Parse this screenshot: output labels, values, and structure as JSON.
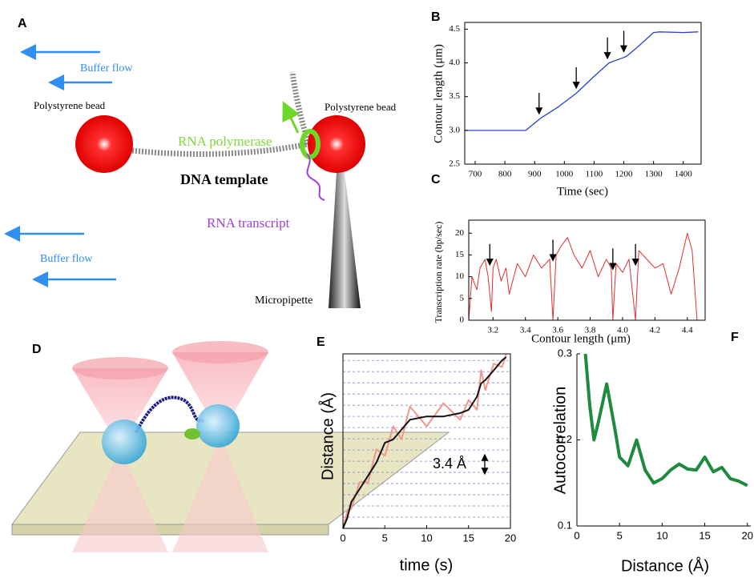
{
  "diagram_a": {
    "label": "A",
    "buffer_flow_top": "Buffer flow",
    "bead_left": "Polystyrene bead",
    "bead_right": "Polystyrene bead",
    "rna_polymerase": "RNA polymerase",
    "dna_template": "DNA template",
    "rna_transcript": "RNA transcript",
    "buffer_flow_bottom": "Buffer flow",
    "micropipette": "Micropipette"
  },
  "diagram_d": {
    "label": "D"
  },
  "chart_data": [
    {
      "type": "line",
      "panel_label": "B",
      "xlabel": "Time (sec)",
      "ylabel": "Contour length (μm)",
      "box": true,
      "xlim": [
        665,
        1460
      ],
      "ylim": [
        2.5,
        4.6
      ],
      "xticks": [
        700,
        800,
        900,
        1000,
        1100,
        1200,
        1300,
        1400
      ],
      "yticks": [
        2.5,
        {
          "value": 3,
          "label": "3.0"
        },
        3.5,
        {
          "value": 4,
          "label": "4.0"
        },
        4.5
      ],
      "x": [
        665,
        700,
        800,
        870,
        920,
        980,
        1040,
        1100,
        1150,
        1200,
        1210,
        1250,
        1300,
        1320,
        1400,
        1450
      ],
      "series": [
        {
          "color": "#2a3fd6",
          "values": [
            3.0,
            3.0,
            3.0,
            3.0,
            3.18,
            3.35,
            3.55,
            3.8,
            4.0,
            4.08,
            4.1,
            4.25,
            4.45,
            4.46,
            4.45,
            4.46
          ]
        }
      ],
      "arrows": [
        {
          "x": 915,
          "y": 3.2
        },
        {
          "x": 1040,
          "y": 3.58
        },
        {
          "x": 1145,
          "y": 4.02
        },
        {
          "x": 1200,
          "y": 4.12
        }
      ]
    },
    {
      "type": "line",
      "panel_label": "C",
      "xlabel": "Contour length (μm)",
      "ylabel": "Transcription rate (bp/sec)",
      "box": true,
      "xlim": [
        3.05,
        4.51
      ],
      "ylim": [
        0,
        23
      ],
      "xticks": [
        3.2,
        3.4,
        3.6,
        3.8,
        {
          "value": 4,
          "label": "4.0"
        },
        4.2,
        4.4
      ],
      "yticks": [
        0,
        5,
        10,
        15,
        20
      ],
      "x": [
        3.05,
        3.07,
        3.1,
        3.12,
        3.15,
        3.17,
        3.19,
        3.2,
        3.22,
        3.25,
        3.28,
        3.3,
        3.35,
        3.4,
        3.45,
        3.5,
        3.55,
        3.57,
        3.59,
        3.62,
        3.66,
        3.7,
        3.75,
        3.8,
        3.85,
        3.9,
        3.93,
        3.94,
        3.96,
        4.0,
        4.04,
        4.08,
        4.1,
        4.15,
        4.2,
        4.25,
        4.3,
        4.35,
        4.4,
        4.43,
        4.46
      ],
      "series": [
        {
          "color": "#e03030",
          "values": [
            0,
            10,
            7,
            12,
            14,
            10,
            2,
            12,
            14,
            9,
            12,
            6,
            13,
            10,
            15,
            12,
            14,
            0,
            15,
            17,
            19,
            15,
            12,
            16,
            10,
            14,
            12,
            0,
            13,
            11,
            14,
            0,
            16,
            14,
            12,
            13,
            6,
            12,
            20,
            16,
            0
          ]
        }
      ],
      "arrows": [
        {
          "x": 3.18,
          "y": 12
        },
        {
          "x": 3.57,
          "y": 13
        },
        {
          "x": 3.94,
          "y": 11
        },
        {
          "x": 4.08,
          "y": 12
        }
      ]
    },
    {
      "type": "line",
      "panel_label": "E",
      "xlabel": "time (s)",
      "ylabel": "Distance (Å)",
      "box": true,
      "xlim": [
        0,
        20
      ],
      "ylim": [
        0,
        53
      ],
      "xticks": [
        0,
        5,
        10,
        15,
        20
      ],
      "grid_spacing": 3.4,
      "annotation": "3.4 Å",
      "x": [
        0,
        0.5,
        1,
        2,
        3,
        4,
        5,
        6,
        7,
        8,
        10,
        12,
        14,
        15,
        16,
        16.5,
        17,
        18,
        19,
        19.5
      ],
      "series": [
        {
          "color": "#f0968a",
          "values": [
            0,
            5,
            6,
            14,
            14,
            24,
            22,
            31,
            27,
            37,
            31,
            38,
            33,
            39,
            36,
            48,
            42,
            50,
            49,
            53
          ]
        },
        {
          "color": "#111111",
          "values": [
            0,
            3,
            8,
            12,
            16,
            20,
            26,
            27,
            30,
            33,
            34,
            34,
            35,
            36,
            40,
            44,
            45,
            48,
            51,
            52
          ]
        }
      ]
    },
    {
      "type": "line",
      "panel_label": "F",
      "xlabel": "Distance (Å)",
      "ylabel": "Autocorrelation",
      "box": false,
      "xlim": [
        0,
        20.4
      ],
      "ylim": [
        0.1,
        0.3
      ],
      "xticks": [
        0,
        5,
        10,
        15,
        20
      ],
      "yticks": [
        0.1,
        0.2,
        0.3
      ],
      "x": [
        1,
        1.5,
        2,
        2.5,
        3.5,
        4.5,
        5,
        6,
        7,
        8,
        9,
        10,
        11,
        12,
        13,
        14,
        15,
        16,
        17,
        18,
        19,
        20
      ],
      "series": [
        {
          "color": "#1e8a3e",
          "values": [
            0.3,
            0.24,
            0.2,
            0.22,
            0.265,
            0.21,
            0.18,
            0.17,
            0.2,
            0.165,
            0.15,
            0.155,
            0.165,
            0.172,
            0.166,
            0.165,
            0.18,
            0.163,
            0.168,
            0.155,
            0.152,
            0.147
          ]
        }
      ]
    }
  ]
}
